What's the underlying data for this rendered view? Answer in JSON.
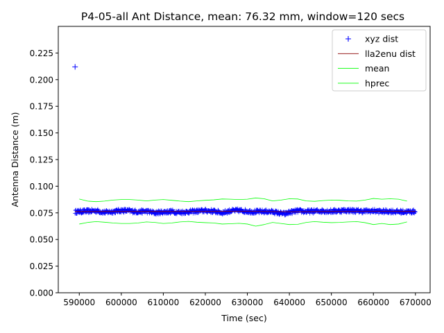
{
  "chart_data": {
    "type": "scatter",
    "title": "P4-05-all Ant Distance, mean: 76.32 mm, window=120 secs",
    "xlabel": "Time (sec)",
    "ylabel": "Antenna Distance (m)",
    "xlim": [
      585000,
      673500
    ],
    "ylim": [
      0.0,
      0.25
    ],
    "x_ticks": [
      590000,
      600000,
      610000,
      620000,
      630000,
      640000,
      650000,
      660000,
      670000
    ],
    "x_tick_labels": [
      "590000",
      "600000",
      "610000",
      "620000",
      "630000",
      "640000",
      "650000",
      "660000",
      "670000"
    ],
    "y_ticks": [
      0.0,
      0.025,
      0.05,
      0.075,
      0.1,
      0.125,
      0.15,
      0.175,
      0.2,
      0.225
    ],
    "y_tick_labels": [
      "0.000",
      "0.025",
      "0.050",
      "0.075",
      "0.100",
      "0.125",
      "0.150",
      "0.175",
      "0.200",
      "0.225"
    ],
    "grid": false,
    "legend_position": "top-right",
    "legend": [
      {
        "label": "xyz dist",
        "color": "#0000ff",
        "marker": "+"
      },
      {
        "label": "lla2enu dist",
        "color": "#8b0000",
        "marker": "line"
      },
      {
        "label": "mean",
        "color": "#00ff00",
        "marker": "line"
      },
      {
        "label": "hprec",
        "color": "#00ff00",
        "marker": "line"
      }
    ],
    "series": [
      {
        "name": "xyz dist",
        "color": "#0000ff",
        "outlier": [
          589000,
          0.212
        ],
        "x": [
          589000,
          590000,
          592000,
          594000,
          596000,
          598000,
          600000,
          602000,
          604000,
          606000,
          608000,
          610000,
          612000,
          614000,
          616000,
          618000,
          620000,
          622000,
          624000,
          626000,
          628000,
          630000,
          632000,
          634000,
          636000,
          638000,
          639000,
          640000,
          642000,
          644000,
          646000,
          648000,
          650000,
          652000,
          654000,
          656000,
          658000,
          660000,
          662000,
          664000,
          666000,
          668000,
          670000
        ],
        "y": [
          0.076,
          0.0762,
          0.0765,
          0.077,
          0.0755,
          0.0762,
          0.0772,
          0.0768,
          0.076,
          0.0765,
          0.075,
          0.0758,
          0.0762,
          0.0755,
          0.076,
          0.0765,
          0.077,
          0.0765,
          0.0752,
          0.0768,
          0.0772,
          0.0765,
          0.076,
          0.0762,
          0.076,
          0.0745,
          0.074,
          0.0755,
          0.0768,
          0.0762,
          0.0765,
          0.0768,
          0.0765,
          0.077,
          0.0772,
          0.0768,
          0.0765,
          0.0768,
          0.0762,
          0.0765,
          0.076,
          0.076,
          0.0762
        ]
      },
      {
        "name": "lla2enu dist",
        "color": "#8b0000",
        "x": [
          589000,
          600000,
          610000,
          620000,
          630000,
          640000,
          650000,
          660000,
          670000
        ],
        "y": [
          0.0762,
          0.0763,
          0.0762,
          0.0763,
          0.0764,
          0.076,
          0.0763,
          0.0764,
          0.0763
        ]
      },
      {
        "name": "mean",
        "color": "#00ff00",
        "x": [
          590000,
          592000,
          594000,
          596000,
          598000,
          600000,
          602000,
          604000,
          606000,
          608000,
          610000,
          612000,
          614000,
          616000,
          618000,
          620000,
          622000,
          624000,
          626000,
          628000,
          630000,
          632000,
          634000,
          636000,
          638000,
          640000,
          642000,
          644000,
          646000,
          648000,
          650000,
          652000,
          654000,
          656000,
          658000,
          660000,
          662000,
          664000,
          666000,
          668000
        ],
        "y": [
          0.088,
          0.086,
          0.0855,
          0.086,
          0.087,
          0.0875,
          0.0875,
          0.087,
          0.0862,
          0.087,
          0.0875,
          0.0868,
          0.086,
          0.0855,
          0.0862,
          0.0868,
          0.0872,
          0.088,
          0.0878,
          0.0875,
          0.0878,
          0.089,
          0.0882,
          0.0862,
          0.087,
          0.0882,
          0.088,
          0.0862,
          0.0858,
          0.0865,
          0.087,
          0.0868,
          0.0862,
          0.086,
          0.087,
          0.0885,
          0.0878,
          0.0882,
          0.0878,
          0.086
        ]
      },
      {
        "name": "hprec",
        "color": "#00ff00",
        "x": [
          590000,
          592000,
          594000,
          596000,
          598000,
          600000,
          602000,
          604000,
          606000,
          608000,
          610000,
          612000,
          614000,
          616000,
          618000,
          620000,
          622000,
          624000,
          626000,
          628000,
          630000,
          632000,
          634000,
          636000,
          638000,
          640000,
          642000,
          644000,
          646000,
          648000,
          650000,
          652000,
          654000,
          656000,
          658000,
          660000,
          662000,
          664000,
          666000,
          668000
        ],
        "y": [
          0.0645,
          0.066,
          0.0668,
          0.0662,
          0.0655,
          0.065,
          0.065,
          0.0655,
          0.0665,
          0.066,
          0.065,
          0.0655,
          0.0665,
          0.067,
          0.0662,
          0.0658,
          0.0655,
          0.0645,
          0.0648,
          0.0652,
          0.0645,
          0.0625,
          0.064,
          0.066,
          0.065,
          0.064,
          0.0642,
          0.066,
          0.0668,
          0.0662,
          0.0658,
          0.066,
          0.0665,
          0.0668,
          0.0658,
          0.064,
          0.065,
          0.064,
          0.0645,
          0.0665
        ]
      }
    ]
  }
}
